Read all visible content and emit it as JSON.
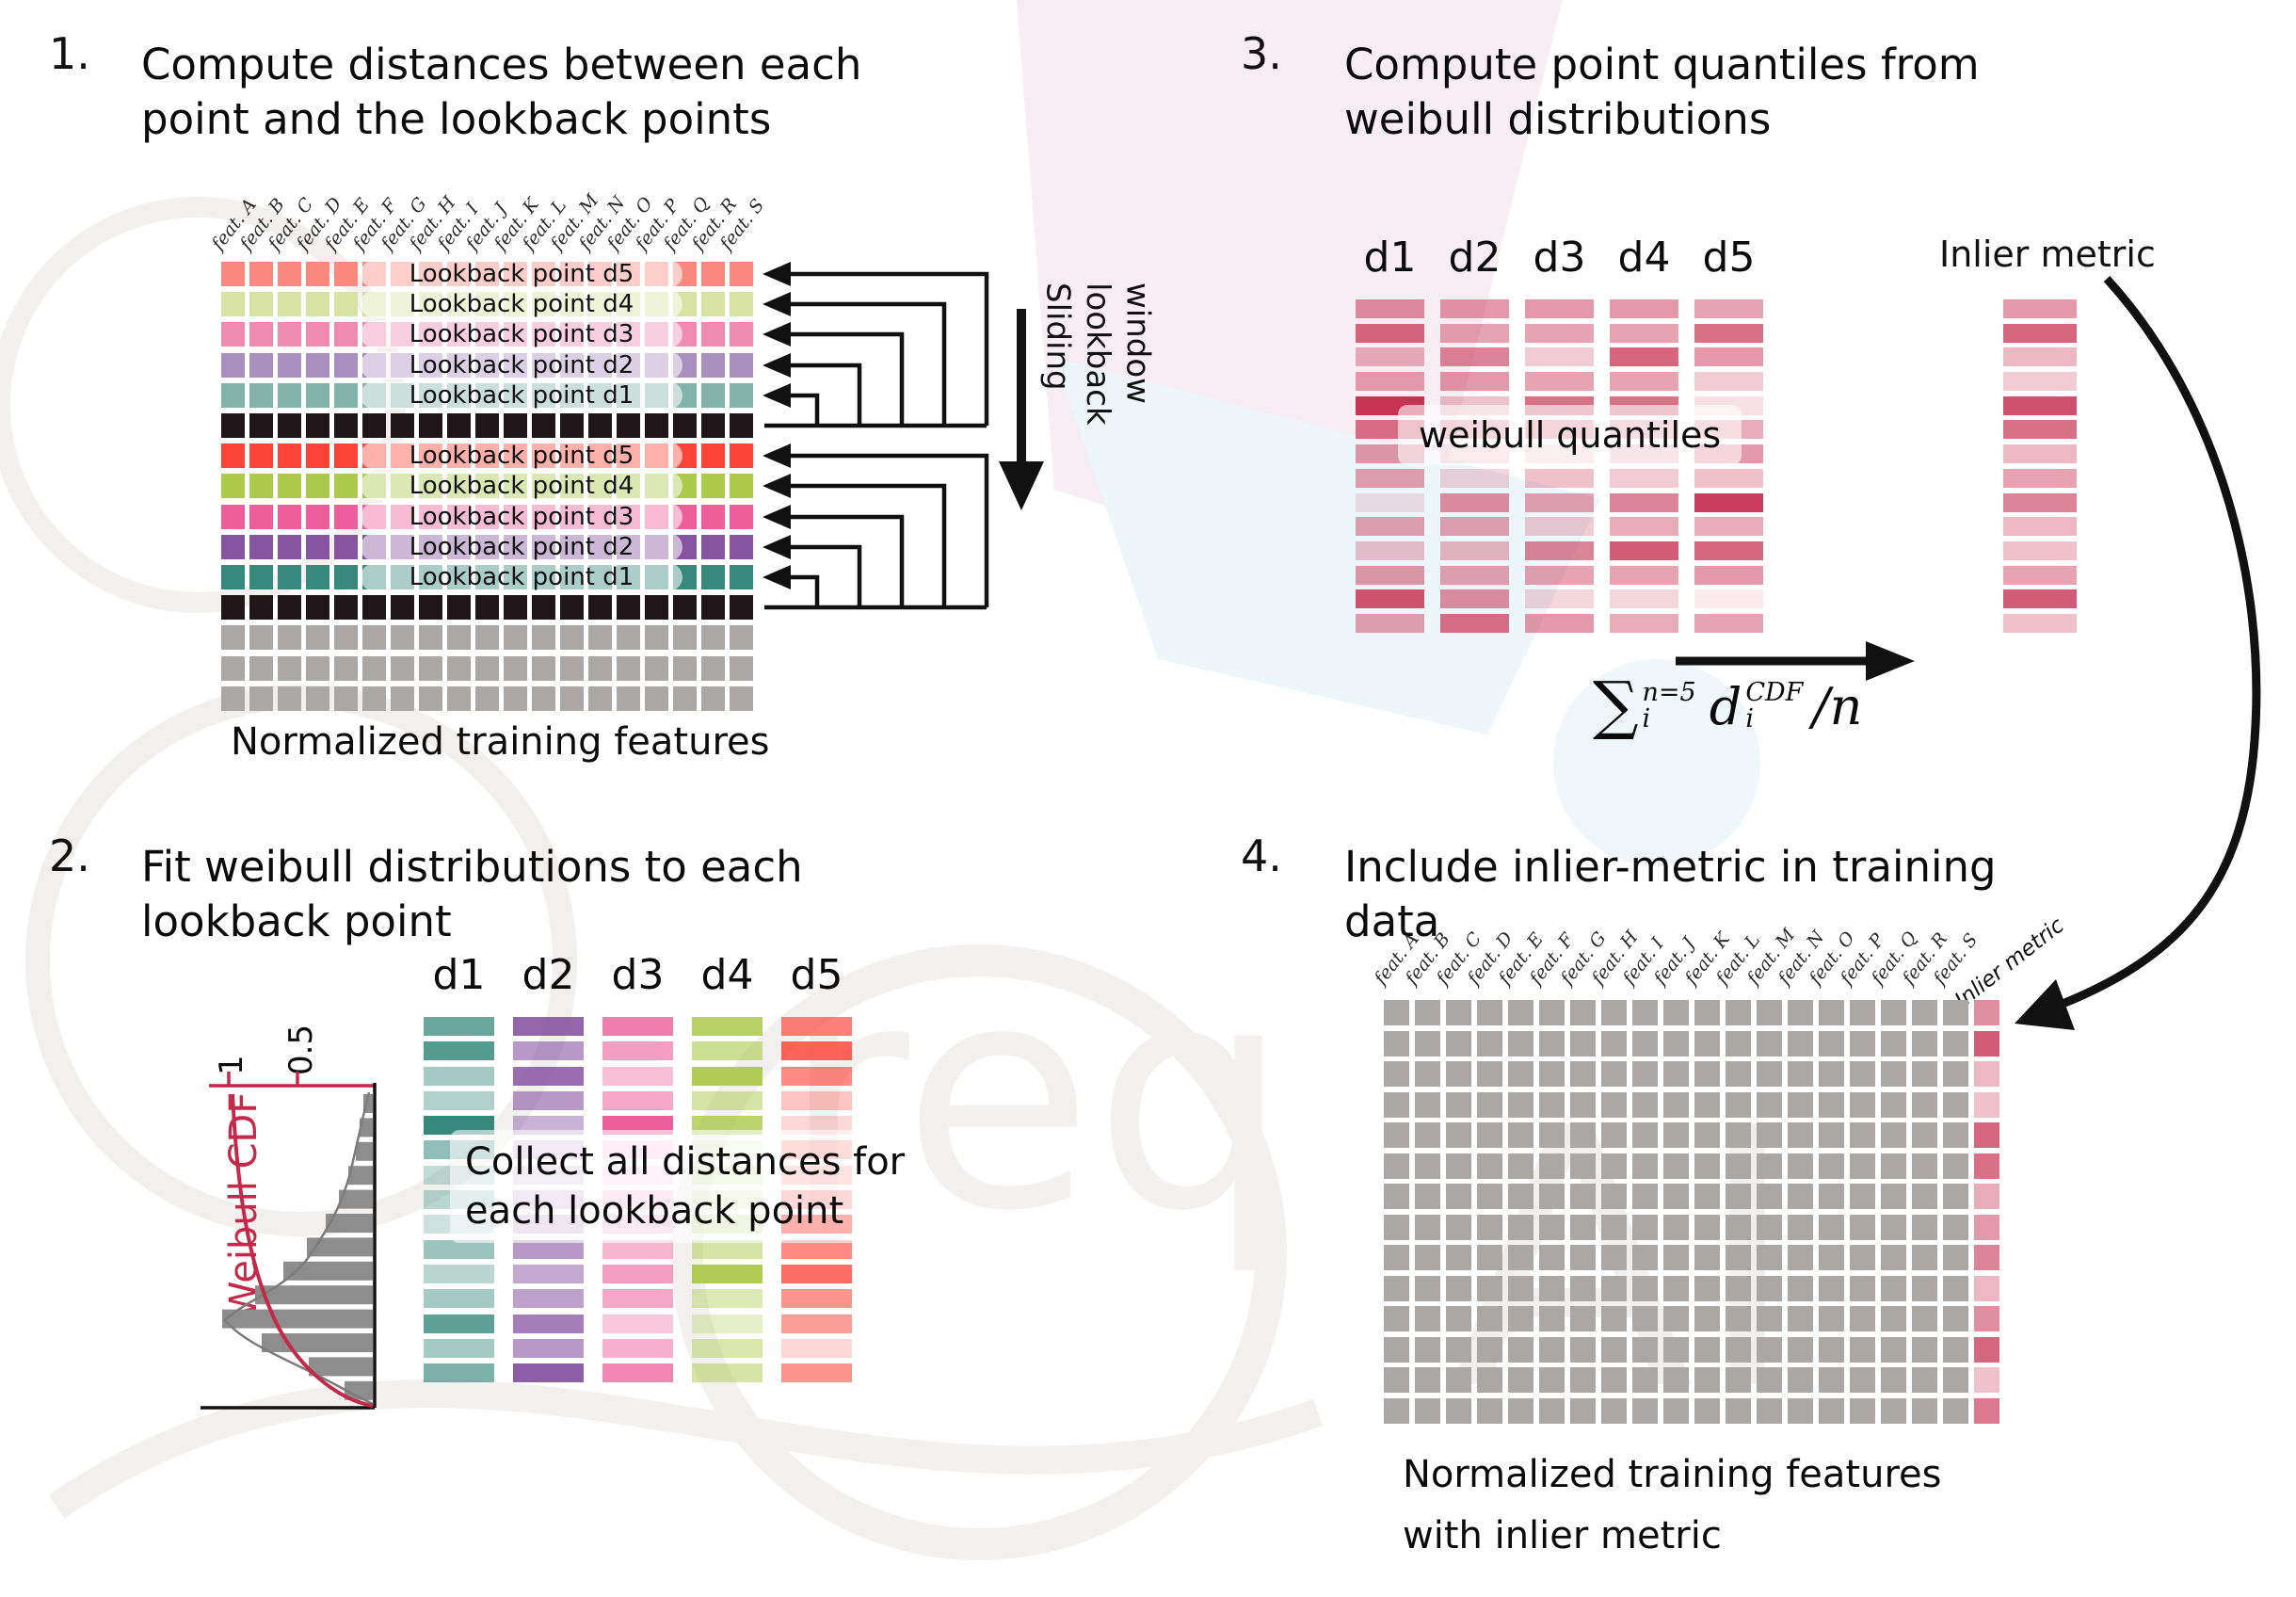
{
  "colors": {
    "black_cell": "#1e1618",
    "gray_cell": "#aba7a5",
    "crimson": "#c73353",
    "red_axis": "#c32a4a",
    "hist_bar": "#8d8d8d"
  },
  "panel1": {
    "number": "1.",
    "title_line1": "Compute distances between each",
    "title_line2": "point and the lookback points",
    "feature_prefix": "feat.",
    "features": [
      "A",
      "B",
      "C",
      "D",
      "E",
      "F",
      "G",
      "H",
      "I",
      "J",
      "K",
      "L",
      "M",
      "N",
      "O",
      "P",
      "Q",
      "R",
      "S"
    ],
    "rows": [
      {
        "kind": "lookback",
        "color": "#f9897f",
        "label": "Lookback point d5"
      },
      {
        "kind": "lookback",
        "color": "#d8e2a2",
        "label": "Lookback point d4"
      },
      {
        "kind": "lookback",
        "color": "#f08bb0",
        "label": "Lookback point d3"
      },
      {
        "kind": "lookback",
        "color": "#a98fc0",
        "label": "Lookback point d2"
      },
      {
        "kind": "lookback",
        "color": "#83b2a9",
        "label": "Lookback point d1"
      },
      {
        "kind": "plain",
        "color": "#1e1618"
      },
      {
        "kind": "lookback",
        "color": "#fc4338",
        "label": "Lookback point d5"
      },
      {
        "kind": "lookback",
        "color": "#abc94a",
        "label": "Lookback point d4"
      },
      {
        "kind": "lookback",
        "color": "#ed5f9a",
        "label": "Lookback point d3"
      },
      {
        "kind": "lookback",
        "color": "#8754a1",
        "label": "Lookback point d2"
      },
      {
        "kind": "lookback",
        "color": "#37897c",
        "label": "Lookback point d1"
      },
      {
        "kind": "plain",
        "color": "#1e1618"
      },
      {
        "kind": "plain",
        "color": "#aba7a5"
      },
      {
        "kind": "plain",
        "color": "#aba7a5"
      },
      {
        "kind": "plain",
        "color": "#aba7a5"
      }
    ],
    "sliding_lines": [
      "Sliding",
      "lookback",
      "window"
    ],
    "caption": "Normalized training features"
  },
  "panel2": {
    "number": "2.",
    "title_line1": "Fit weibull distributions to each",
    "title_line2": "lookback point",
    "plot": {
      "axis_label": "Weibull CDF",
      "tick_1": "1",
      "tick_05": "0.5",
      "hist_lengths": [
        10,
        14,
        18,
        26,
        36,
        50,
        70,
        95,
        125,
        160,
        118,
        68,
        30
      ]
    },
    "columns": [
      {
        "name": "d1",
        "color": "#37897c",
        "opacities": [
          0.75,
          0.85,
          0.45,
          0.4,
          1.0,
          0.55,
          0.3,
          0.35,
          0.25,
          0.5,
          0.35,
          0.45,
          0.8,
          0.45,
          0.65
        ]
      },
      {
        "name": "d2",
        "color": "#8754a1",
        "opacities": [
          0.9,
          0.6,
          0.85,
          0.6,
          0.45,
          0.3,
          0.25,
          0.3,
          0.35,
          0.6,
          0.5,
          0.55,
          0.75,
          0.6,
          0.95
        ]
      },
      {
        "name": "d3",
        "color": "#ed5f9a",
        "opacities": [
          0.8,
          0.6,
          0.4,
          0.55,
          1.0,
          0.25,
          0.2,
          0.3,
          0.35,
          0.45,
          0.6,
          0.55,
          0.35,
          0.5,
          0.75
        ]
      },
      {
        "name": "d4",
        "color": "#abc94a",
        "opacities": [
          0.85,
          0.6,
          0.95,
          0.5,
          0.8,
          0.2,
          0.3,
          0.25,
          0.4,
          0.5,
          0.95,
          0.4,
          0.3,
          0.45,
          0.5
        ]
      },
      {
        "name": "d5",
        "color": "#fb3c31",
        "opacities": [
          0.65,
          0.8,
          0.6,
          0.3,
          0.2,
          0.45,
          0.35,
          0.5,
          1.0,
          0.6,
          0.75,
          0.55,
          0.5,
          0.2,
          0.55
        ]
      }
    ],
    "overlay_line1": "Collect all distances for",
    "overlay_line2": "each lookback point"
  },
  "panel3": {
    "number": "3.",
    "title_line1": "Compute point quantiles from",
    "title_line2": "weibull distributions",
    "base_color": "#c73353",
    "columns": [
      {
        "name": "d1",
        "opacities": [
          0.55,
          0.75,
          0.38,
          0.45,
          1.0,
          0.7,
          0.5,
          0.45,
          0.15,
          0.45,
          0.3,
          0.5,
          0.85,
          0.45
        ]
      },
      {
        "name": "d2",
        "opacities": [
          0.5,
          0.45,
          0.6,
          0.5,
          0.3,
          0.45,
          0.25,
          0.2,
          0.55,
          0.45,
          0.35,
          0.45,
          0.55,
          0.7
        ]
      },
      {
        "name": "d3",
        "opacities": [
          0.5,
          0.45,
          0.25,
          0.45,
          0.7,
          0.5,
          0.2,
          0.3,
          0.45,
          0.25,
          0.6,
          0.45,
          0.2,
          0.5
        ]
      },
      {
        "name": "d4",
        "opacities": [
          0.5,
          0.45,
          0.75,
          0.45,
          0.7,
          0.4,
          0.3,
          0.25,
          0.6,
          0.4,
          0.8,
          0.45,
          0.2,
          0.4
        ]
      },
      {
        "name": "d5",
        "opacities": [
          0.45,
          0.7,
          0.5,
          0.25,
          0.15,
          0.4,
          0.5,
          0.3,
          0.95,
          0.4,
          0.75,
          0.5,
          0.1,
          0.45
        ]
      }
    ],
    "inlier": {
      "label": "Inlier metric",
      "opacities": [
        0.5,
        0.75,
        0.35,
        0.25,
        0.85,
        0.7,
        0.35,
        0.45,
        0.6,
        0.35,
        0.3,
        0.45,
        0.8,
        0.3
      ]
    },
    "overlay": "weibull quantiles",
    "formula": {
      "sum": "∑",
      "upper": "n=5",
      "lower": "i",
      "var": "d",
      "var_sup": "CDF",
      "var_sub": "i",
      "tail": "/n"
    }
  },
  "panel4": {
    "number": "4.",
    "title_line1": "Include inlier-metric in training",
    "title_line2": "data",
    "feature_prefix": "feat.",
    "features": [
      "A",
      "B",
      "C",
      "D",
      "E",
      "F",
      "G",
      "H",
      "I",
      "J",
      "K",
      "L",
      "M",
      "N",
      "O",
      "P",
      "Q",
      "R",
      "S"
    ],
    "inlier_label": "Inlier metric",
    "rows": 14,
    "inlier_opacities": [
      0.55,
      0.8,
      0.35,
      0.3,
      0.75,
      0.7,
      0.4,
      0.5,
      0.6,
      0.35,
      0.55,
      0.75,
      0.3,
      0.65
    ],
    "caption_line1": "Normalized training features",
    "caption_line2": "with inlier metric"
  }
}
